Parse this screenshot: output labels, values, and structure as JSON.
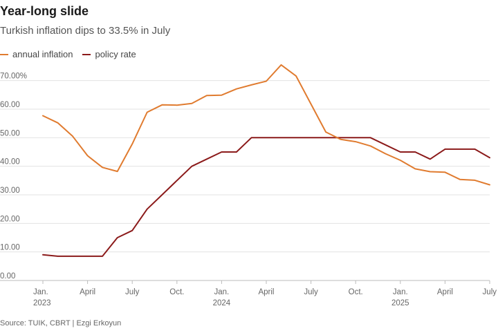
{
  "title": "Year-long slide",
  "subtitle": "Turkish inflation dips to 33.5% in July",
  "source": "Source: TUIK, CBRT | Ezgi Erkoyun",
  "chart_data": {
    "type": "line",
    "title": "Year-long slide",
    "subtitle": "Turkish inflation dips to 33.5% in July",
    "x_categories": [
      "Jan 2023",
      "Feb 2023",
      "Mar 2023",
      "Apr 2023",
      "May 2023",
      "Jun 2023",
      "Jul 2023",
      "Aug 2023",
      "Sep 2023",
      "Oct 2023",
      "Nov 2023",
      "Dec 2023",
      "Jan 2024",
      "Feb 2024",
      "Mar 2024",
      "Apr 2024",
      "May 2024",
      "Jun 2024",
      "Jul 2024",
      "Aug 2024",
      "Sep 2024",
      "Oct 2024",
      "Nov 2024",
      "Dec 2024",
      "Jan 2025",
      "Feb 2025",
      "Mar 2025",
      "Apr 2025",
      "May 2025",
      "Jun 2025",
      "Jul 2025"
    ],
    "x_tick_labels": [
      {
        "index": 0,
        "line1": "Jan.",
        "line2": "2023"
      },
      {
        "index": 3,
        "line1": "April",
        "line2": ""
      },
      {
        "index": 6,
        "line1": "July",
        "line2": ""
      },
      {
        "index": 9,
        "line1": "Oct.",
        "line2": ""
      },
      {
        "index": 12,
        "line1": "Jan.",
        "line2": "2024"
      },
      {
        "index": 15,
        "line1": "April",
        "line2": ""
      },
      {
        "index": 18,
        "line1": "July",
        "line2": ""
      },
      {
        "index": 21,
        "line1": "Oct.",
        "line2": ""
      },
      {
        "index": 24,
        "line1": "Jan.",
        "line2": "2025"
      },
      {
        "index": 27,
        "line1": "April",
        "line2": ""
      },
      {
        "index": 30,
        "line1": "July",
        "line2": ""
      }
    ],
    "y_ticks": [
      {
        "value": 0,
        "label": "0.00"
      },
      {
        "value": 10,
        "label": "10.00"
      },
      {
        "value": 20,
        "label": "20.00"
      },
      {
        "value": 30,
        "label": "30.00"
      },
      {
        "value": 40,
        "label": "40.00"
      },
      {
        "value": 50,
        "label": "50.00"
      },
      {
        "value": 60,
        "label": "60.00"
      },
      {
        "value": 70,
        "label": "70.00%"
      }
    ],
    "ylim": [
      0,
      75
    ],
    "grid": true,
    "legend_position": "top-left",
    "series": [
      {
        "name": "annual inflation",
        "color": "#e07b2f",
        "values": [
          57.7,
          55.2,
          50.5,
          43.7,
          39.6,
          38.2,
          47.8,
          58.9,
          61.5,
          61.4,
          62.0,
          64.8,
          64.9,
          67.1,
          68.5,
          69.8,
          75.5,
          71.6,
          61.8,
          52.0,
          49.4,
          48.6,
          47.1,
          44.4,
          42.1,
          39.1,
          38.1,
          37.9,
          35.4,
          35.1,
          33.5
        ]
      },
      {
        "name": "policy rate",
        "color": "#8b1a1a",
        "values": [
          9.0,
          8.5,
          8.5,
          8.5,
          8.5,
          15.0,
          17.5,
          25.0,
          30.0,
          35.0,
          40.0,
          42.5,
          45.0,
          45.0,
          50.0,
          50.0,
          50.0,
          50.0,
          50.0,
          50.0,
          50.0,
          50.0,
          50.0,
          47.5,
          45.0,
          45.0,
          42.5,
          46.0,
          46.0,
          46.0,
          43.0
        ]
      }
    ]
  }
}
